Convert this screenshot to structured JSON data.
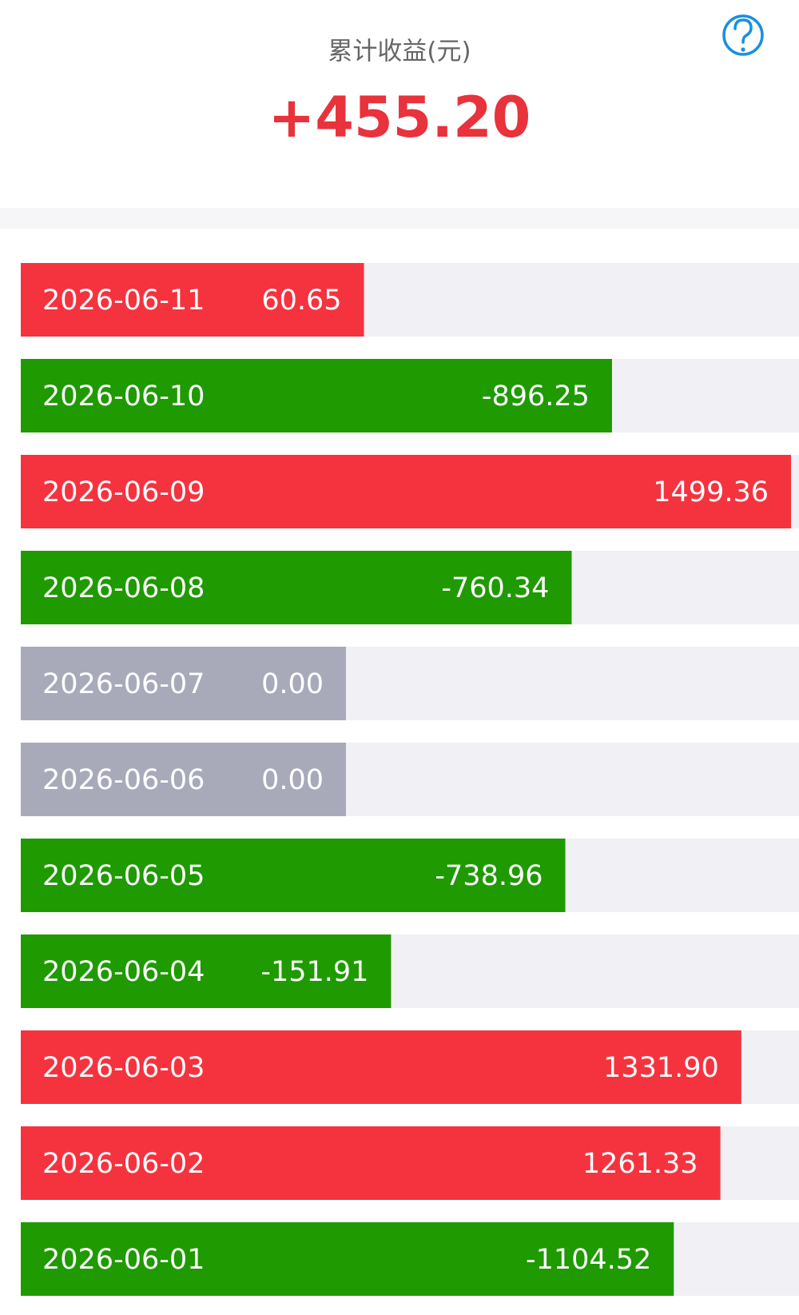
{
  "header": {
    "title": "累计收益(元)",
    "total": "+455.20"
  },
  "chart_data": {
    "type": "bar",
    "orientation": "horizontal",
    "categories": [
      "2026-06-11",
      "2026-06-10",
      "2026-06-09",
      "2026-06-08",
      "2026-06-07",
      "2026-06-06",
      "2026-06-05",
      "2026-06-04",
      "2026-06-03",
      "2026-06-02",
      "2026-06-01"
    ],
    "values": [
      60.65,
      -896.25,
      1499.36,
      -760.34,
      0,
      0,
      -738.96,
      -151.91,
      1331.9,
      1261.33,
      -1104.52
    ],
    "value_labels": [
      "60.65",
      "-896.25",
      "1499.36",
      "-760.34",
      "0.00",
      "0.00",
      "-738.96",
      "-151.91",
      "1331.90",
      "1261.33",
      "-1104.52"
    ],
    "colors": {
      "positive": "#f5333f",
      "negative": "#1f9a00",
      "zero": "#a9aab9",
      "track": "#f0f0f5"
    }
  }
}
